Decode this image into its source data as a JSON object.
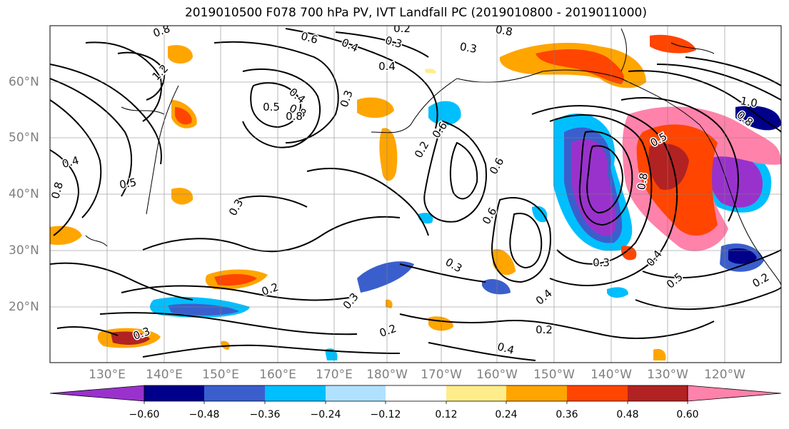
{
  "title": "2019010500 F078 700 hPa PV, IVT Landfall PC (2019010800 - 2019011000)",
  "lon_labels": [
    "130°E",
    "140°E",
    "150°E",
    "160°E",
    "170°E",
    "180°W",
    "170°W",
    "160°W",
    "150°W",
    "140°W",
    "130°W",
    "120°W"
  ],
  "lat_labels": [
    "60°N",
    "50°N",
    "40°N",
    "30°N",
    "20°N"
  ],
  "colorbar": {
    "ticks": [
      "−0.60",
      "−0.48",
      "−0.36",
      "−0.24",
      "−0.12",
      "0.12",
      "0.24",
      "0.36",
      "0.48",
      "0.60"
    ],
    "colors": [
      "#9932cc",
      "#00008b",
      "#3a5fcd",
      "#00bfff",
      "#b0e2ff",
      "#ffffff",
      "#ffec8b",
      "#ffa500",
      "#ff4500",
      "#b22222",
      "#ff82ab"
    ]
  },
  "contour_labels": [
    "0.8",
    "0.6",
    "0.2",
    "0.3",
    "0.8",
    "0.4",
    "0.3",
    "0.4",
    "0.8",
    "1.2",
    "0.4",
    "0.5",
    "0.6",
    "0.8",
    "1.0",
    "0.8",
    "0.4",
    "0.8",
    "0.5",
    "0.3",
    "0.3",
    "0.6",
    "0.2",
    "0.2",
    "0.3",
    "0.2",
    "0.3",
    "0.4",
    "0.2",
    "0.4",
    "0.3",
    "0.5",
    "0.4",
    "0.2",
    "0.3",
    "0.6",
    "0.8",
    "0.5"
  ]
}
